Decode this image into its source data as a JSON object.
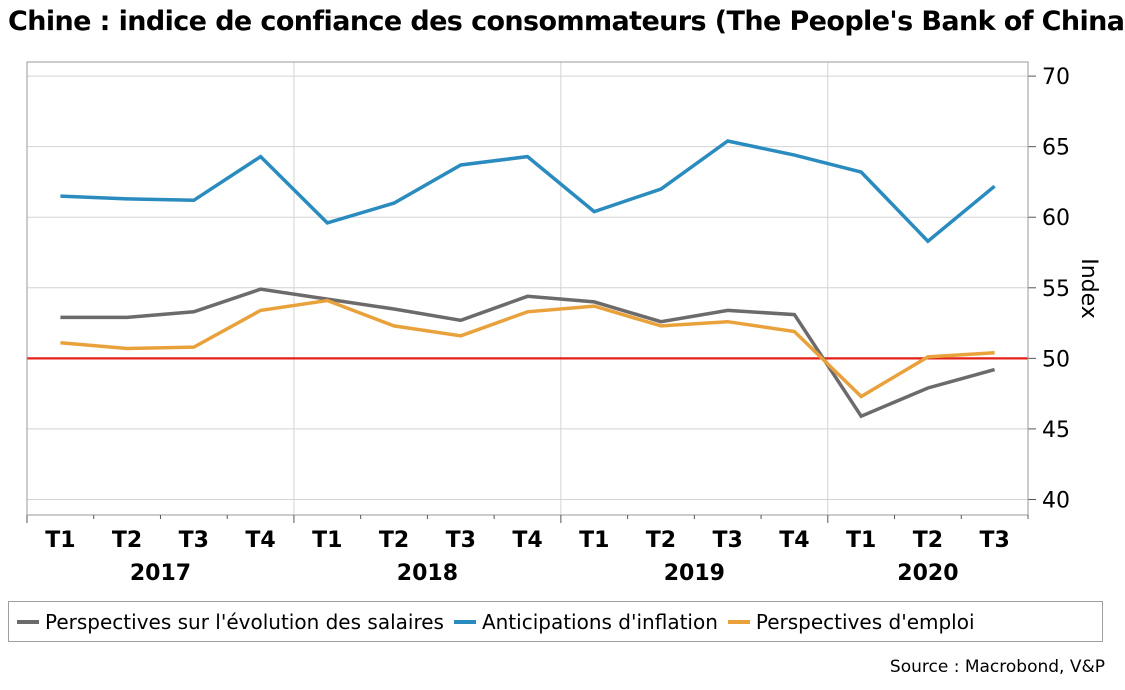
{
  "chart_data": {
    "type": "line",
    "title": "Chine : indice de confiance des consommateurs (The People's Bank of China)",
    "ylabel": "Index",
    "xlabel": "",
    "ylim": [
      40,
      70
    ],
    "yticks": [
      40,
      45,
      50,
      55,
      60,
      65,
      70
    ],
    "categories": [
      "T1",
      "T2",
      "T3",
      "T4",
      "T1",
      "T2",
      "T3",
      "T4",
      "T1",
      "T2",
      "T3",
      "T4",
      "T1",
      "T2",
      "T3"
    ],
    "years": [
      {
        "label": "2017",
        "start": 0,
        "end": 3
      },
      {
        "label": "2018",
        "start": 4,
        "end": 7
      },
      {
        "label": "2019",
        "start": 8,
        "end": 11
      },
      {
        "label": "2020",
        "start": 12,
        "end": 14
      }
    ],
    "reference_line": {
      "value": 50,
      "color": "#e32119"
    },
    "series": [
      {
        "name": "Perspectives sur l'évolution des salaires",
        "color": "#6d6a6c",
        "values": [
          52.9,
          52.9,
          53.3,
          54.9,
          54.2,
          53.5,
          52.7,
          54.4,
          54.0,
          52.6,
          53.4,
          53.1,
          45.9,
          47.9,
          49.2
        ]
      },
      {
        "name": "Anticipations d'inflation",
        "color": "#2a8bbf",
        "values": [
          61.5,
          61.3,
          61.2,
          64.3,
          59.6,
          61.0,
          63.7,
          64.3,
          60.4,
          62.0,
          65.4,
          64.4,
          63.2,
          58.3,
          62.2
        ]
      },
      {
        "name": "Perspectives d'emploi",
        "color": "#e9a23b",
        "values": [
          51.1,
          50.7,
          50.8,
          53.4,
          54.1,
          52.3,
          51.6,
          53.3,
          53.7,
          52.3,
          52.6,
          51.9,
          47.3,
          50.1,
          50.4
        ]
      }
    ],
    "legend_position": "bottom",
    "grid": true
  },
  "source": "Source : Macrobond, V&P"
}
